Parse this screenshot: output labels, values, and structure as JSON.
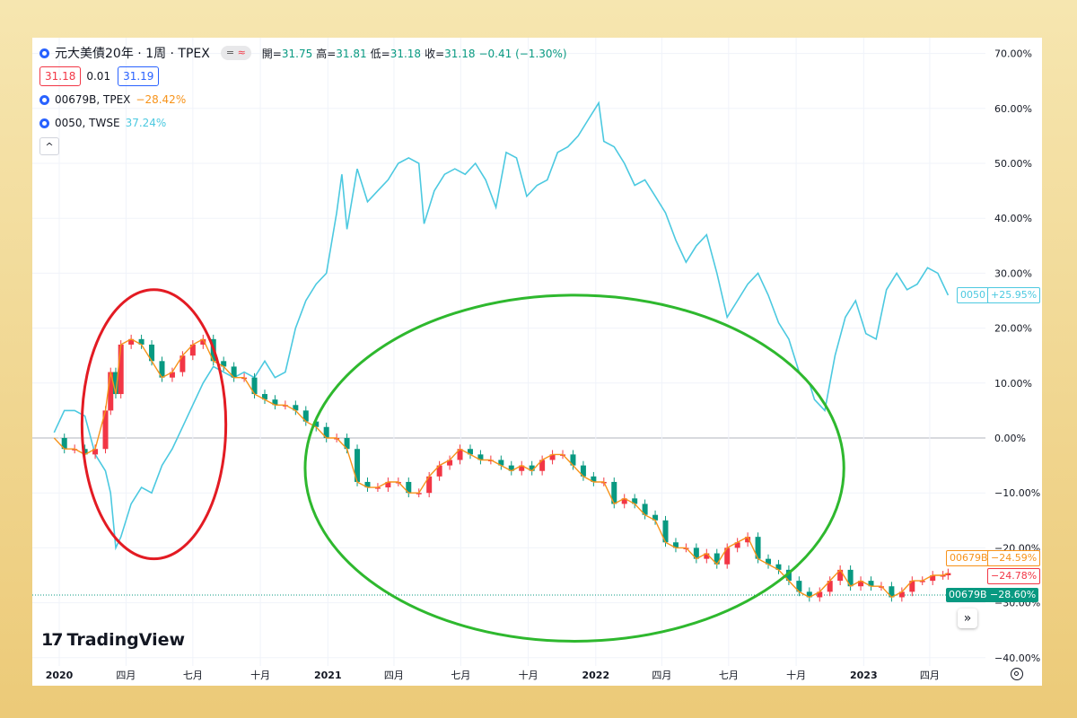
{
  "main_symbol": {
    "title": "元大美債20年 · 1周 · TPEX",
    "chip_eq": "=",
    "chip_approx": "≈",
    "ohlc": [
      {
        "label": "開=",
        "value": "31.75"
      },
      {
        "label": "高=",
        "value": "31.81"
      },
      {
        "label": "低=",
        "value": "31.18"
      },
      {
        "label": "收=",
        "value": "31.18"
      },
      {
        "label": "",
        "value": "−0.41 (−1.30%)"
      }
    ],
    "bid": "31.18",
    "spread": "0.01",
    "ask": "31.19"
  },
  "compare_series": [
    {
      "name": "00679B, TPEX",
      "change": "−28.42%",
      "color": "#f7931a"
    },
    {
      "name": "0050, TWSE",
      "change": "37.24%",
      "color": "#4cc9e0"
    }
  ],
  "collapse_icon": "^",
  "logo_text": "TradingView",
  "logo_mark": "17",
  "scroll_icon": "»",
  "badges": {
    "b0050_name": "0050",
    "b0050_val": "+25.95%",
    "b00679_orange_name": "00679B",
    "b00679_orange_val": "−24.59%",
    "red_val": "−24.78%",
    "b00679_green_name": "00679B",
    "b00679_green_val": "−28.60%"
  },
  "colors": {
    "up": "#f23645",
    "down": "#089981",
    "compare_orange": "#f7931a",
    "compare_cyan": "#4cc9e0",
    "annotation_red": "#e31b23",
    "annotation_green": "#2eb82e"
  },
  "chart_data": {
    "type": "line",
    "y_axis": {
      "unit": "%",
      "range": [
        -40,
        70
      ],
      "ticks": [
        "70.00%",
        "60.00%",
        "50.00%",
        "40.00%",
        "30.00%",
        "20.00%",
        "10.00%",
        "0.00%",
        "−10.00%",
        "−20.00%",
        "−30.00%",
        "−40.00%"
      ]
    },
    "x_axis": {
      "range": [
        "2020-01-01",
        "2023-05-20"
      ],
      "ticks": [
        {
          "label": "2020",
          "date": "2020-01-01",
          "year": true
        },
        {
          "label": "四月",
          "date": "2020-04-01",
          "year": false
        },
        {
          "label": "七月",
          "date": "2020-07-01",
          "year": false
        },
        {
          "label": "十月",
          "date": "2020-10-01",
          "year": false
        },
        {
          "label": "2021",
          "date": "2021-01-01",
          "year": true
        },
        {
          "label": "四月",
          "date": "2021-04-01",
          "year": false
        },
        {
          "label": "七月",
          "date": "2021-07-01",
          "year": false
        },
        {
          "label": "十月",
          "date": "2021-10-01",
          "year": false
        },
        {
          "label": "2022",
          "date": "2022-01-01",
          "year": true
        },
        {
          "label": "四月",
          "date": "2022-04-01",
          "year": false
        },
        {
          "label": "七月",
          "date": "2022-07-01",
          "year": false
        },
        {
          "label": "十月",
          "date": "2022-10-01",
          "year": false
        },
        {
          "label": "2023",
          "date": "2023-01-01",
          "year": true
        },
        {
          "label": "四月",
          "date": "2023-04-01",
          "year": false
        }
      ]
    },
    "series": [
      {
        "name": "0050",
        "style": "line",
        "points": [
          [
            "2019-12-25",
            1
          ],
          [
            "2020-01-08",
            5
          ],
          [
            "2020-01-22",
            5
          ],
          [
            "2020-02-05",
            4
          ],
          [
            "2020-02-19",
            -3
          ],
          [
            "2020-03-04",
            -6
          ],
          [
            "2020-03-11",
            -10
          ],
          [
            "2020-03-18",
            -20
          ],
          [
            "2020-03-25",
            -18
          ],
          [
            "2020-04-08",
            -12
          ],
          [
            "2020-04-22",
            -9
          ],
          [
            "2020-05-06",
            -10
          ],
          [
            "2020-05-20",
            -5
          ],
          [
            "2020-06-03",
            -2
          ],
          [
            "2020-06-17",
            2
          ],
          [
            "2020-07-01",
            6
          ],
          [
            "2020-07-15",
            10
          ],
          [
            "2020-07-29",
            13
          ],
          [
            "2020-08-12",
            12
          ],
          [
            "2020-08-26",
            11
          ],
          [
            "2020-09-09",
            12
          ],
          [
            "2020-09-23",
            11
          ],
          [
            "2020-10-07",
            14
          ],
          [
            "2020-10-21",
            11
          ],
          [
            "2020-11-04",
            12
          ],
          [
            "2020-11-18",
            20
          ],
          [
            "2020-12-02",
            25
          ],
          [
            "2020-12-16",
            28
          ],
          [
            "2020-12-30",
            30
          ],
          [
            "2021-01-13",
            41
          ],
          [
            "2021-01-20",
            48
          ],
          [
            "2021-01-27",
            38
          ],
          [
            "2021-02-10",
            49
          ],
          [
            "2021-02-24",
            43
          ],
          [
            "2021-03-10",
            45
          ],
          [
            "2021-03-24",
            47
          ],
          [
            "2021-04-07",
            50
          ],
          [
            "2021-04-21",
            51
          ],
          [
            "2021-05-05",
            50
          ],
          [
            "2021-05-12",
            39
          ],
          [
            "2021-05-26",
            45
          ],
          [
            "2021-06-09",
            48
          ],
          [
            "2021-06-23",
            49
          ],
          [
            "2021-07-07",
            48
          ],
          [
            "2021-07-21",
            50
          ],
          [
            "2021-08-04",
            47
          ],
          [
            "2021-08-18",
            42
          ],
          [
            "2021-09-01",
            52
          ],
          [
            "2021-09-15",
            51
          ],
          [
            "2021-09-29",
            44
          ],
          [
            "2021-10-13",
            46
          ],
          [
            "2021-10-27",
            47
          ],
          [
            "2021-11-10",
            52
          ],
          [
            "2021-11-24",
            53
          ],
          [
            "2021-12-08",
            55
          ],
          [
            "2021-12-22",
            58
          ],
          [
            "2022-01-05",
            61
          ],
          [
            "2022-01-12",
            54
          ],
          [
            "2022-01-26",
            53
          ],
          [
            "2022-02-09",
            50
          ],
          [
            "2022-02-23",
            46
          ],
          [
            "2022-03-09",
            47
          ],
          [
            "2022-03-23",
            44
          ],
          [
            "2022-04-06",
            41
          ],
          [
            "2022-04-20",
            36
          ],
          [
            "2022-05-04",
            32
          ],
          [
            "2022-05-18",
            35
          ],
          [
            "2022-06-01",
            37
          ],
          [
            "2022-06-15",
            30
          ],
          [
            "2022-06-29",
            22
          ],
          [
            "2022-07-13",
            25
          ],
          [
            "2022-07-27",
            28
          ],
          [
            "2022-08-10",
            30
          ],
          [
            "2022-08-24",
            26
          ],
          [
            "2022-09-07",
            21
          ],
          [
            "2022-09-21",
            18
          ],
          [
            "2022-10-05",
            12
          ],
          [
            "2022-10-19",
            10
          ],
          [
            "2022-10-26",
            7
          ],
          [
            "2022-11-09",
            5
          ],
          [
            "2022-11-23",
            15
          ],
          [
            "2022-12-07",
            22
          ],
          [
            "2022-12-21",
            25
          ],
          [
            "2023-01-04",
            19
          ],
          [
            "2023-01-18",
            18
          ],
          [
            "2023-02-01",
            27
          ],
          [
            "2023-02-15",
            30
          ],
          [
            "2023-03-01",
            27
          ],
          [
            "2023-03-15",
            28
          ],
          [
            "2023-03-29",
            31
          ],
          [
            "2023-04-12",
            30
          ],
          [
            "2023-04-26",
            26
          ]
        ]
      },
      {
        "name": "00679B",
        "style": "line",
        "points": [
          [
            "2019-12-25",
            0
          ],
          [
            "2020-01-08",
            -2
          ],
          [
            "2020-01-22",
            -2
          ],
          [
            "2020-02-05",
            -3
          ],
          [
            "2020-02-19",
            -2
          ],
          [
            "2020-03-04",
            5
          ],
          [
            "2020-03-11",
            12
          ],
          [
            "2020-03-18",
            8
          ],
          [
            "2020-03-25",
            17
          ],
          [
            "2020-04-08",
            18
          ],
          [
            "2020-04-22",
            17
          ],
          [
            "2020-05-06",
            14
          ],
          [
            "2020-05-20",
            11
          ],
          [
            "2020-06-03",
            12
          ],
          [
            "2020-06-17",
            15
          ],
          [
            "2020-07-01",
            17
          ],
          [
            "2020-07-15",
            18
          ],
          [
            "2020-07-29",
            14
          ],
          [
            "2020-08-12",
            13
          ],
          [
            "2020-08-26",
            11
          ],
          [
            "2020-09-09",
            11
          ],
          [
            "2020-09-23",
            8
          ],
          [
            "2020-10-07",
            7
          ],
          [
            "2020-10-21",
            6
          ],
          [
            "2020-11-04",
            6
          ],
          [
            "2020-11-18",
            5
          ],
          [
            "2020-12-02",
            3
          ],
          [
            "2020-12-16",
            2
          ],
          [
            "2020-12-30",
            0
          ],
          [
            "2021-01-13",
            0
          ],
          [
            "2021-01-27",
            -2
          ],
          [
            "2021-02-10",
            -8
          ],
          [
            "2021-02-24",
            -9
          ],
          [
            "2021-03-10",
            -9
          ],
          [
            "2021-03-24",
            -8
          ],
          [
            "2021-04-07",
            -8
          ],
          [
            "2021-04-21",
            -10
          ],
          [
            "2021-05-05",
            -10
          ],
          [
            "2021-05-19",
            -7
          ],
          [
            "2021-06-02",
            -5
          ],
          [
            "2021-06-16",
            -4
          ],
          [
            "2021-06-30",
            -2
          ],
          [
            "2021-07-14",
            -3
          ],
          [
            "2021-07-28",
            -4
          ],
          [
            "2021-08-11",
            -4
          ],
          [
            "2021-08-25",
            -5
          ],
          [
            "2021-09-08",
            -6
          ],
          [
            "2021-09-22",
            -5
          ],
          [
            "2021-10-06",
            -6
          ],
          [
            "2021-10-20",
            -4
          ],
          [
            "2021-11-03",
            -3
          ],
          [
            "2021-11-17",
            -3
          ],
          [
            "2021-12-01",
            -5
          ],
          [
            "2021-12-15",
            -7
          ],
          [
            "2021-12-29",
            -8
          ],
          [
            "2022-01-12",
            -8
          ],
          [
            "2022-01-26",
            -12
          ],
          [
            "2022-02-09",
            -11
          ],
          [
            "2022-02-23",
            -12
          ],
          [
            "2022-03-09",
            -14
          ],
          [
            "2022-03-23",
            -15
          ],
          [
            "2022-04-06",
            -19
          ],
          [
            "2022-04-20",
            -20
          ],
          [
            "2022-05-04",
            -20
          ],
          [
            "2022-05-18",
            -22
          ],
          [
            "2022-06-01",
            -21
          ],
          [
            "2022-06-15",
            -23
          ],
          [
            "2022-06-29",
            -20
          ],
          [
            "2022-07-13",
            -19
          ],
          [
            "2022-07-27",
            -18
          ],
          [
            "2022-08-10",
            -22
          ],
          [
            "2022-08-24",
            -23
          ],
          [
            "2022-09-07",
            -24
          ],
          [
            "2022-09-21",
            -26
          ],
          [
            "2022-10-05",
            -28
          ],
          [
            "2022-10-19",
            -29
          ],
          [
            "2022-11-02",
            -28
          ],
          [
            "2022-11-16",
            -26
          ],
          [
            "2022-11-30",
            -24
          ],
          [
            "2022-12-14",
            -27
          ],
          [
            "2022-12-28",
            -26
          ],
          [
            "2023-01-11",
            -27
          ],
          [
            "2023-01-25",
            -27
          ],
          [
            "2023-02-08",
            -29
          ],
          [
            "2023-02-22",
            -28
          ],
          [
            "2023-03-08",
            -26
          ],
          [
            "2023-03-22",
            -26
          ],
          [
            "2023-04-05",
            -25
          ],
          [
            "2023-04-19",
            -25
          ],
          [
            "2023-04-26",
            -24.6
          ]
        ]
      }
    ],
    "annotations": [
      {
        "shape": "ellipse",
        "color": "red",
        "from": "2020-02-01",
        "to": "2020-08-15",
        "y_from": -22,
        "y_to": 27
      },
      {
        "shape": "ellipse",
        "color": "green",
        "from": "2020-12-01",
        "to": "2022-12-05",
        "y_from": -37,
        "y_to": 26
      }
    ]
  }
}
